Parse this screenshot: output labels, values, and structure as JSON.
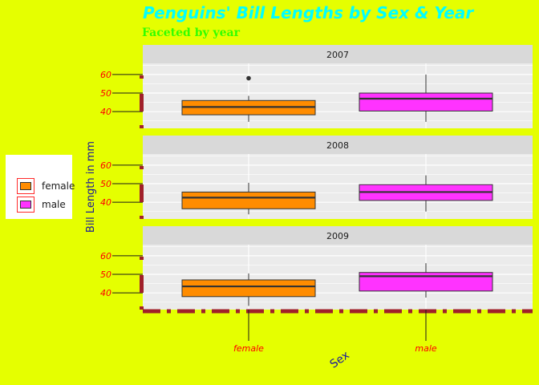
{
  "chart_data": {
    "type": "boxplot",
    "title": "Penguins' Bill Lengths by Sex & Year",
    "subtitle": "Faceted by year",
    "xlabel": "Sex",
    "ylabel": "Bill Length in mm",
    "categories": [
      "female",
      "male"
    ],
    "ylim": [
      31,
      66
    ],
    "yticks": [
      40,
      50,
      60
    ],
    "facets": [
      {
        "label": "2007",
        "boxes": [
          {
            "category": "female",
            "min": 34.5,
            "q1": 38.3,
            "median": 42.5,
            "q3": 46.0,
            "max": 48.5,
            "outliers": [
              58.0
            ]
          },
          {
            "category": "male",
            "min": 34.5,
            "q1": 40.3,
            "median": 47.0,
            "q3": 50.0,
            "max": 60.0,
            "outliers": []
          }
        ]
      },
      {
        "label": "2008",
        "boxes": [
          {
            "category": "female",
            "min": 33.5,
            "q1": 36.5,
            "median": 42.5,
            "q3": 45.5,
            "max": 50.5,
            "outliers": []
          },
          {
            "category": "male",
            "min": 35.0,
            "q1": 41.0,
            "median": 45.5,
            "q3": 49.5,
            "max": 54.5,
            "outliers": []
          }
        ]
      },
      {
        "label": "2009",
        "boxes": [
          {
            "category": "female",
            "min": 33.0,
            "q1": 38.0,
            "median": 43.5,
            "q3": 47.0,
            "max": 50.5,
            "outliers": []
          },
          {
            "category": "male",
            "min": 37.5,
            "q1": 41.0,
            "median": 49.0,
            "q3": 51.0,
            "max": 56.0,
            "outliers": []
          }
        ]
      }
    ],
    "legend": {
      "position": "left",
      "items": [
        {
          "label": "female",
          "color": "#ff8c00"
        },
        {
          "label": "male",
          "color": "#ff33ff"
        }
      ]
    },
    "colors": {
      "page_background": "#e5ff00",
      "panel_background": "#ebebeb",
      "strip_background": "#d9d9d9",
      "title": "#00ffff",
      "subtitle": "#33ff00",
      "tick_labels": "#ff0000",
      "axis_title": "#1a1a99",
      "accent_dashes": "#a0202a"
    },
    "grid": true
  }
}
